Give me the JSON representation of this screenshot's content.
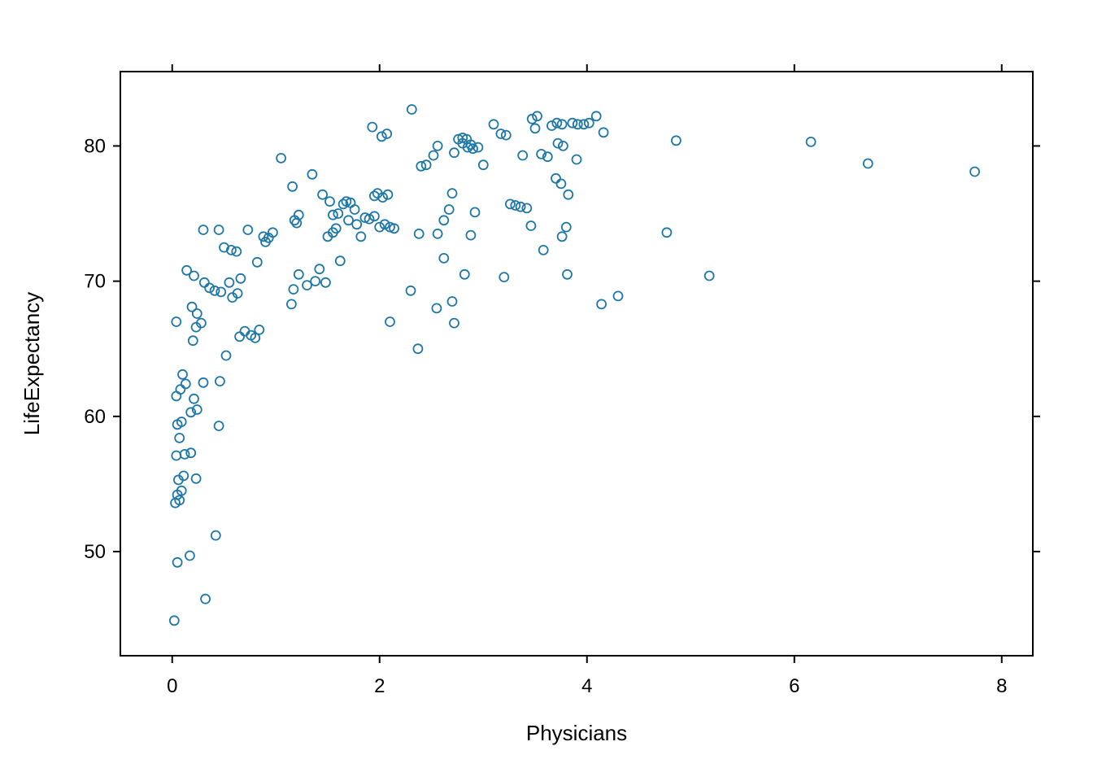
{
  "figure": {
    "background": "#ffffff",
    "border_color": "#000000"
  },
  "chart_data": {
    "type": "scatter",
    "title": "",
    "xlabel": "Physicians",
    "ylabel": "LifeExpectancy",
    "xlim": [
      -0.5,
      8.3
    ],
    "ylim": [
      42.3,
      85.5
    ],
    "xticks": [
      0,
      2,
      4,
      6,
      8
    ],
    "yticks": [
      50,
      60,
      70,
      80
    ],
    "grid": false,
    "legend": "none",
    "marker": "open-circle",
    "point_color": "#1f78a8",
    "points": [
      [
        0.02,
        44.9
      ],
      [
        0.05,
        49.2
      ],
      [
        0.17,
        49.7
      ],
      [
        0.32,
        46.5
      ],
      [
        0.42,
        51.2
      ],
      [
        0.03,
        53.6
      ],
      [
        0.07,
        53.8
      ],
      [
        0.05,
        54.2
      ],
      [
        0.09,
        54.5
      ],
      [
        0.06,
        55.3
      ],
      [
        0.11,
        55.6
      ],
      [
        0.23,
        55.4
      ],
      [
        0.04,
        57.1
      ],
      [
        0.12,
        57.2
      ],
      [
        0.18,
        57.3
      ],
      [
        0.07,
        58.4
      ],
      [
        0.05,
        59.4
      ],
      [
        0.09,
        59.6
      ],
      [
        0.45,
        59.3
      ],
      [
        0.18,
        60.3
      ],
      [
        0.24,
        60.5
      ],
      [
        0.21,
        61.3
      ],
      [
        0.04,
        61.5
      ],
      [
        0.08,
        62.0
      ],
      [
        0.13,
        62.4
      ],
      [
        0.3,
        62.5
      ],
      [
        0.46,
        62.6
      ],
      [
        0.1,
        63.1
      ],
      [
        0.52,
        64.5
      ],
      [
        0.04,
        67.0
      ],
      [
        0.2,
        65.6
      ],
      [
        0.23,
        66.6
      ],
      [
        0.28,
        66.9
      ],
      [
        0.65,
        65.9
      ],
      [
        0.7,
        66.3
      ],
      [
        0.76,
        66.0
      ],
      [
        0.8,
        65.8
      ],
      [
        0.84,
        66.4
      ],
      [
        0.19,
        68.1
      ],
      [
        0.24,
        67.6
      ],
      [
        0.36,
        69.5
      ],
      [
        0.41,
        69.3
      ],
      [
        0.47,
        69.2
      ],
      [
        0.31,
        69.9
      ],
      [
        0.14,
        70.8
      ],
      [
        0.21,
        70.4
      ],
      [
        0.58,
        68.8
      ],
      [
        0.63,
        69.1
      ],
      [
        0.55,
        69.9
      ],
      [
        0.66,
        70.2
      ],
      [
        0.3,
        73.8
      ],
      [
        0.45,
        73.8
      ],
      [
        0.5,
        72.5
      ],
      [
        0.57,
        72.3
      ],
      [
        0.62,
        72.2
      ],
      [
        0.73,
        73.8
      ],
      [
        0.82,
        71.4
      ],
      [
        0.88,
        73.3
      ],
      [
        0.93,
        73.2
      ],
      [
        0.97,
        73.6
      ],
      [
        0.9,
        72.9
      ],
      [
        1.05,
        79.1
      ],
      [
        1.16,
        77.0
      ],
      [
        1.35,
        77.9
      ],
      [
        1.18,
        74.5
      ],
      [
        1.22,
        74.9
      ],
      [
        1.2,
        74.3
      ],
      [
        1.45,
        76.4
      ],
      [
        1.52,
        75.9
      ],
      [
        1.15,
        68.3
      ],
      [
        1.17,
        69.4
      ],
      [
        1.22,
        70.5
      ],
      [
        1.3,
        69.7
      ],
      [
        1.38,
        70.0
      ],
      [
        1.42,
        70.9
      ],
      [
        1.48,
        69.9
      ],
      [
        1.5,
        73.3
      ],
      [
        1.55,
        73.6
      ],
      [
        1.58,
        73.9
      ],
      [
        1.55,
        74.9
      ],
      [
        1.62,
        71.5
      ],
      [
        1.6,
        75.0
      ],
      [
        1.65,
        75.7
      ],
      [
        1.68,
        75.9
      ],
      [
        1.72,
        75.8
      ],
      [
        1.7,
        74.5
      ],
      [
        1.76,
        75.3
      ],
      [
        1.78,
        74.2
      ],
      [
        1.82,
        73.3
      ],
      [
        1.86,
        74.7
      ],
      [
        1.93,
        81.4
      ],
      [
        2.02,
        80.7
      ],
      [
        2.07,
        80.9
      ],
      [
        1.95,
        76.3
      ],
      [
        1.98,
        76.5
      ],
      [
        2.03,
        76.2
      ],
      [
        2.08,
        76.4
      ],
      [
        1.9,
        74.6
      ],
      [
        1.95,
        74.8
      ],
      [
        2.0,
        74.0
      ],
      [
        2.05,
        74.2
      ],
      [
        2.1,
        74.0
      ],
      [
        2.14,
        73.9
      ],
      [
        2.1,
        67.0
      ],
      [
        2.31,
        82.7
      ],
      [
        2.4,
        78.5
      ],
      [
        2.45,
        78.6
      ],
      [
        2.52,
        79.3
      ],
      [
        2.56,
        80.0
      ],
      [
        2.3,
        69.3
      ],
      [
        2.37,
        65.0
      ],
      [
        2.55,
        68.0
      ],
      [
        2.62,
        71.7
      ],
      [
        2.7,
        68.5
      ],
      [
        2.72,
        66.9
      ],
      [
        2.38,
        73.5
      ],
      [
        2.56,
        73.5
      ],
      [
        2.62,
        74.5
      ],
      [
        2.67,
        75.3
      ],
      [
        2.7,
        76.5
      ],
      [
        2.72,
        79.5
      ],
      [
        2.76,
        80.5
      ],
      [
        2.8,
        80.6
      ],
      [
        2.8,
        80.2
      ],
      [
        2.84,
        80.5
      ],
      [
        2.85,
        79.9
      ],
      [
        2.88,
        80.1
      ],
      [
        2.9,
        79.8
      ],
      [
        2.82,
        70.5
      ],
      [
        2.88,
        73.4
      ],
      [
        2.95,
        79.9
      ],
      [
        3.0,
        78.6
      ],
      [
        2.92,
        75.1
      ],
      [
        3.1,
        81.6
      ],
      [
        3.17,
        80.9
      ],
      [
        3.22,
        80.8
      ],
      [
        3.2,
        70.3
      ],
      [
        3.26,
        75.7
      ],
      [
        3.31,
        75.6
      ],
      [
        3.36,
        75.5
      ],
      [
        3.38,
        79.3
      ],
      [
        3.42,
        75.4
      ],
      [
        3.46,
        74.1
      ],
      [
        3.47,
        82.0
      ],
      [
        3.52,
        82.2
      ],
      [
        3.5,
        81.3
      ],
      [
        3.56,
        79.4
      ],
      [
        3.62,
        79.2
      ],
      [
        3.58,
        72.3
      ],
      [
        3.66,
        81.5
      ],
      [
        3.71,
        81.7
      ],
      [
        3.76,
        81.6
      ],
      [
        3.7,
        77.6
      ],
      [
        3.75,
        77.2
      ],
      [
        3.72,
        80.2
      ],
      [
        3.77,
        80.0
      ],
      [
        3.76,
        73.3
      ],
      [
        3.8,
        74.0
      ],
      [
        3.82,
        76.4
      ],
      [
        3.81,
        70.5
      ],
      [
        3.86,
        81.7
      ],
      [
        3.91,
        81.6
      ],
      [
        3.9,
        79.0
      ],
      [
        3.97,
        81.6
      ],
      [
        4.02,
        81.7
      ],
      [
        4.09,
        82.2
      ],
      [
        4.16,
        81.0
      ],
      [
        4.14,
        68.3
      ],
      [
        4.3,
        68.9
      ],
      [
        4.77,
        73.6
      ],
      [
        4.86,
        80.4
      ],
      [
        5.18,
        70.4
      ],
      [
        6.16,
        80.3
      ],
      [
        6.71,
        78.7
      ],
      [
        7.74,
        78.1
      ]
    ]
  }
}
